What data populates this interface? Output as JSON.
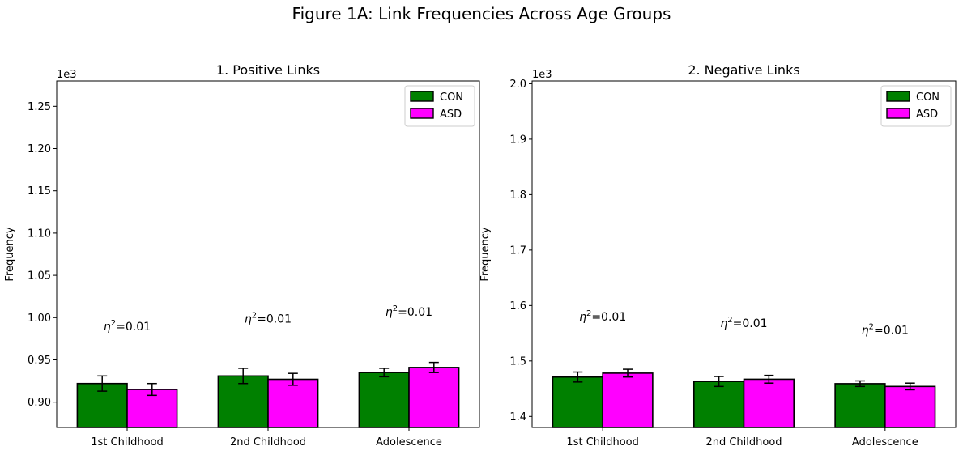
{
  "figure": {
    "title": "Figure 1A: Link Frequencies Across Age Groups"
  },
  "colors": {
    "con": "#008000",
    "asd": "#ff00ff",
    "edge": "#000000"
  },
  "chart_data": [
    {
      "type": "bar",
      "title": "1. Positive Links",
      "xlabel": "",
      "ylabel": "Frequency",
      "offset_text": "1e3",
      "categories": [
        "1st Childhood",
        "2nd Childhood",
        "Adolescence"
      ],
      "series": [
        {
          "name": "CON",
          "values": [
            0.922,
            0.931,
            0.935
          ],
          "errors": [
            0.009,
            0.009,
            0.005
          ]
        },
        {
          "name": "ASD",
          "values": [
            0.915,
            0.927,
            0.941
          ],
          "errors": [
            0.007,
            0.007,
            0.006
          ]
        }
      ],
      "annotations": [
        {
          "category": 0,
          "y": 0.985,
          "label": "=0.01"
        },
        {
          "category": 1,
          "y": 0.994,
          "label": "=0.01"
        },
        {
          "category": 2,
          "y": 1.002,
          "label": "=0.01"
        }
      ],
      "ylim": [
        0.87,
        1.28
      ],
      "yticks": [
        0.9,
        0.95,
        1.0,
        1.05,
        1.1,
        1.15,
        1.2,
        1.25
      ],
      "ytick_labels": [
        "0.90",
        "0.95",
        "1.00",
        "1.05",
        "1.10",
        "1.15",
        "1.20",
        "1.25"
      ],
      "legend": "top-right",
      "grid": false
    },
    {
      "type": "bar",
      "title": "2. Negative Links",
      "xlabel": "",
      "ylabel": "Frequency",
      "offset_text": "1e3",
      "categories": [
        "1st Childhood",
        "2nd Childhood",
        "Adolescence"
      ],
      "series": [
        {
          "name": "CON",
          "values": [
            1.471,
            1.463,
            1.459
          ],
          "errors": [
            0.009,
            0.009,
            0.005
          ]
        },
        {
          "name": "ASD",
          "values": [
            1.478,
            1.467,
            1.454
          ],
          "errors": [
            0.007,
            0.007,
            0.006
          ]
        }
      ],
      "annotations": [
        {
          "category": 0,
          "y": 1.573,
          "label": "=0.01"
        },
        {
          "category": 1,
          "y": 1.561,
          "label": "=0.01"
        },
        {
          "category": 2,
          "y": 1.549,
          "label": "=0.01"
        }
      ],
      "ylim": [
        1.38,
        2.005
      ],
      "yticks": [
        1.4,
        1.5,
        1.6,
        1.7,
        1.8,
        1.9,
        2.0
      ],
      "ytick_labels": [
        "1.4",
        "1.5",
        "1.6",
        "1.7",
        "1.8",
        "1.9",
        "2.0"
      ],
      "legend": "top-right",
      "grid": false
    }
  ]
}
